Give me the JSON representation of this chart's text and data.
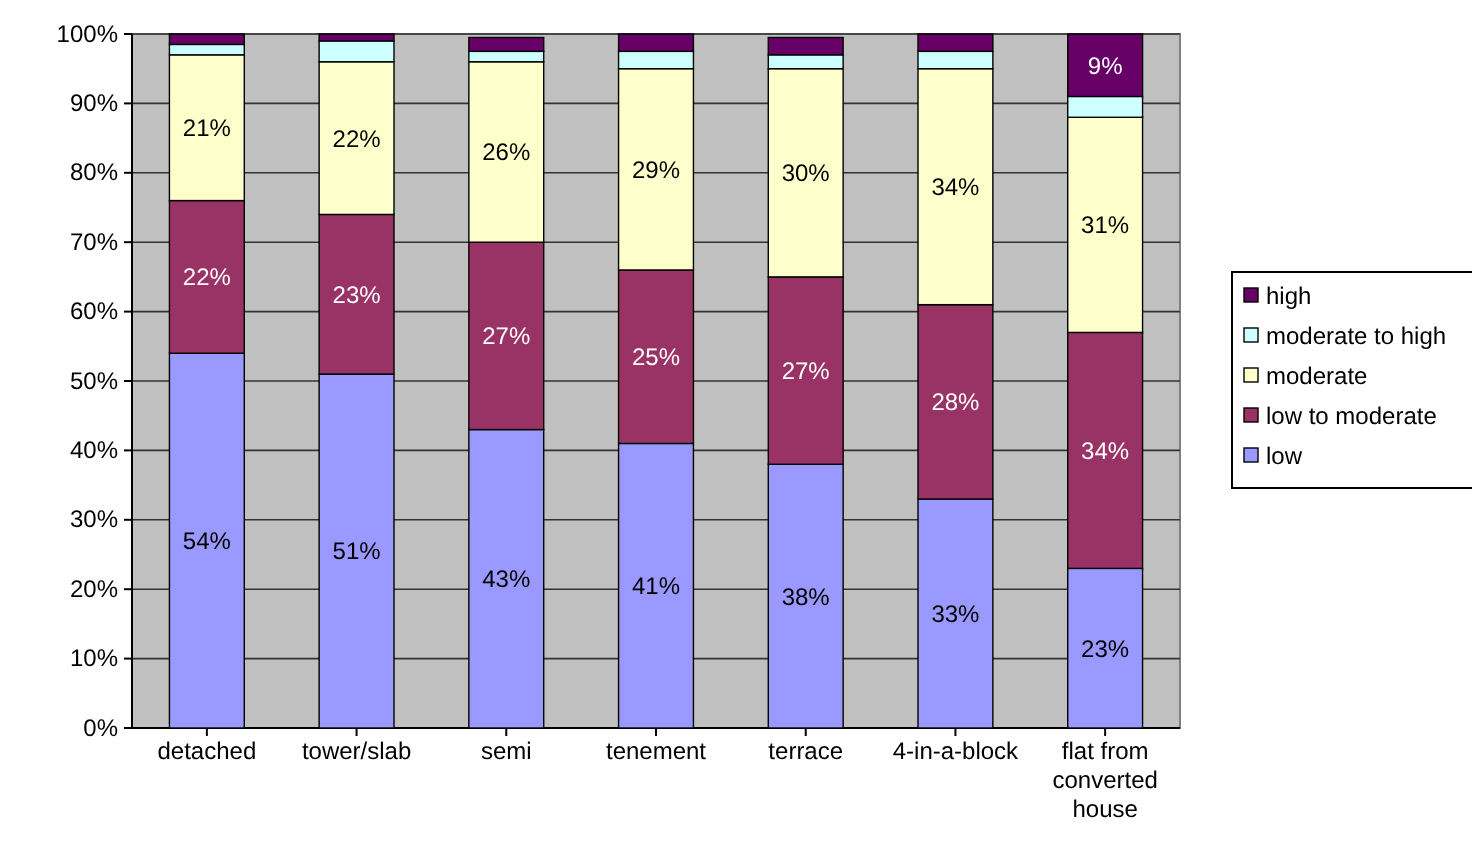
{
  "chart_data": {
    "type": "bar",
    "stacked": true,
    "categories": [
      "detached",
      "tower/slab",
      "semi",
      "tenement",
      "terrace",
      "4-in-a-block",
      "flat from converted house"
    ],
    "series": [
      {
        "name": "low",
        "color": "#9999ff",
        "values": [
          54,
          51,
          43,
          41,
          38,
          33,
          23
        ],
        "value_labels": [
          "54%",
          "51%",
          "43%",
          "41%",
          "38%",
          "33%",
          "23%"
        ]
      },
      {
        "name": "low to moderate",
        "color": "#993366",
        "values": [
          22,
          23,
          27,
          25,
          27,
          28,
          34
        ],
        "value_labels": [
          "22%",
          "23%",
          "27%",
          "25%",
          "27%",
          "28%",
          "34%"
        ]
      },
      {
        "name": "moderate",
        "color": "#ffffcc",
        "values": [
          21,
          22,
          26,
          29,
          30,
          34,
          31
        ],
        "value_labels": [
          "21%",
          "22%",
          "26%",
          "29%",
          "30%",
          "34%",
          "31%"
        ]
      },
      {
        "name": "moderate to high",
        "color": "#ccffff",
        "values": [
          1.5,
          3,
          1.5,
          2.5,
          2,
          2.5,
          3
        ]
      },
      {
        "name": "high",
        "color": "#660066",
        "values": [
          1.5,
          1,
          2,
          2.5,
          2.5,
          2.5,
          9
        ],
        "value_labels": [
          null,
          null,
          null,
          null,
          null,
          null,
          "9%"
        ]
      }
    ],
    "ylim": [
      0,
      100
    ],
    "yticks": [
      {
        "value": 0,
        "label": "0%"
      },
      {
        "value": 10,
        "label": "10%"
      },
      {
        "value": 20,
        "label": "20%"
      },
      {
        "value": 30,
        "label": "30%"
      },
      {
        "value": 40,
        "label": "40%"
      },
      {
        "value": 50,
        "label": "50%"
      },
      {
        "value": 60,
        "label": "60%"
      },
      {
        "value": 70,
        "label": "70%"
      },
      {
        "value": 80,
        "label": "80%"
      },
      {
        "value": 90,
        "label": "90%"
      },
      {
        "value": 100,
        "label": "100%"
      }
    ],
    "grid": "y",
    "legend": "right"
  }
}
